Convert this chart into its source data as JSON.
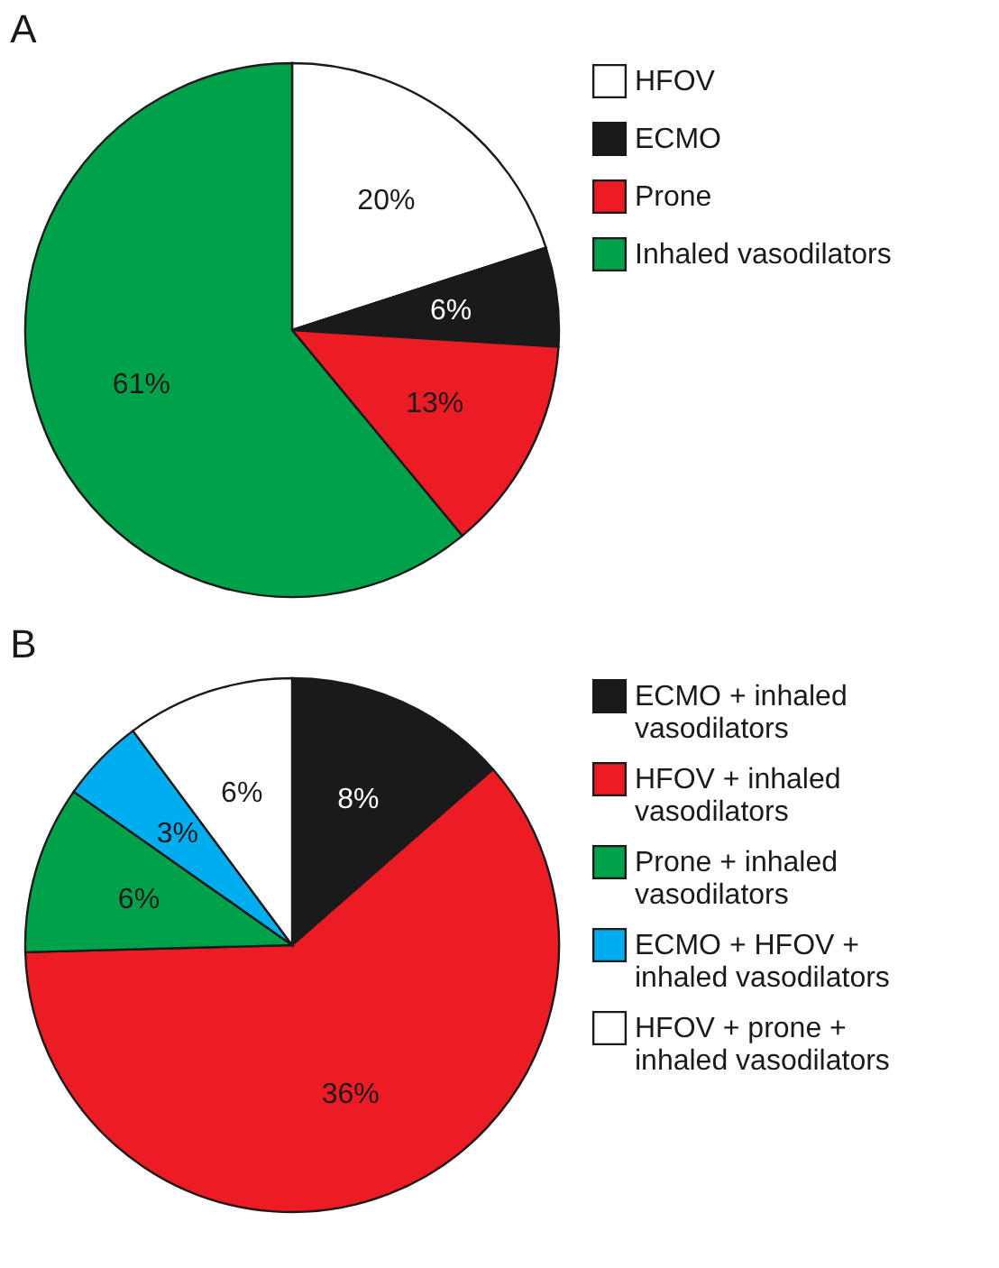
{
  "chart_data": [
    {
      "type": "pie",
      "title": "A",
      "categories": [
        "HFOV",
        "ECMO",
        "Prone",
        "Inhaled vasodilators"
      ],
      "values": [
        20,
        6,
        13,
        61
      ],
      "colors": [
        "#ffffff",
        "#1a1a1a",
        "#ec1c24",
        "#00a14b"
      ],
      "value_labels": [
        "20%",
        "6%",
        "13%",
        "61%"
      ],
      "legend": "top right"
    },
    {
      "type": "pie",
      "title": "B",
      "categories": [
        "ECMO + inhaled vasodilators",
        "HFOV + inhaled vasodilators",
        "Prone + inhaled vasodilators",
        "ECMO + HFOV + inhaled vasodilators",
        "HFOV + prone + inhaled vasodilators"
      ],
      "values": [
        8,
        36,
        6,
        3,
        6
      ],
      "colors": [
        "#1a1a1a",
        "#ec1c24",
        "#00a14b",
        "#00aeef",
        "#ffffff"
      ],
      "value_labels": [
        "8%",
        "36%",
        "6%",
        "3%",
        "6%"
      ],
      "legend": "top right"
    }
  ]
}
